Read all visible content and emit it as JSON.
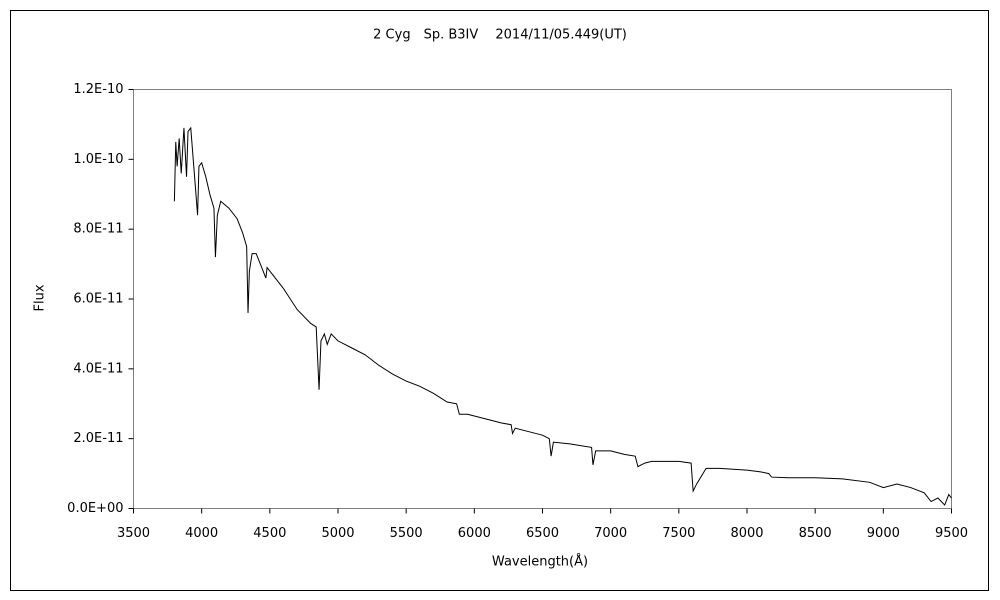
{
  "chart_data": {
    "type": "line",
    "title": "2 Cyg　Sp. B3IV　 2014/11/05.449(UT)",
    "x_label": "Wavelength(Å)",
    "y_label": "Flux",
    "x": [
      3800,
      3810,
      3820,
      3835,
      3850,
      3870,
      3889,
      3900,
      3920,
      3940,
      3970,
      3980,
      4000,
      4030,
      4060,
      4090,
      4101,
      4115,
      4140,
      4200,
      4260,
      4300,
      4330,
      4340,
      4350,
      4370,
      4400,
      4471,
      4480,
      4500,
      4600,
      4700,
      4800,
      4840,
      4861,
      4875,
      4900,
      4921,
      4950,
      5000,
      5100,
      5200,
      5300,
      5400,
      5500,
      5600,
      5700,
      5800,
      5870,
      5890,
      5950,
      6000,
      6100,
      6200,
      6270,
      6280,
      6300,
      6400,
      6500,
      6550,
      6563,
      6580,
      6700,
      6860,
      6870,
      6890,
      7000,
      7100,
      7180,
      7200,
      7250,
      7300,
      7400,
      7500,
      7590,
      7605,
      7630,
      7700,
      7800,
      8000,
      8100,
      8160,
      8180,
      8300,
      8500,
      8700,
      8900,
      9000,
      9100,
      9200,
      9300,
      9350,
      9400,
      9450,
      9480,
      9500
    ],
    "series": [
      {
        "name": "Flux",
        "color": "#000000",
        "values": [
          8.8e-11,
          1.05e-10,
          9.8e-11,
          1.06e-10,
          9.6e-11,
          1.09e-10,
          9.5e-11,
          1.08e-10,
          1.09e-10,
          9.9e-11,
          8.4e-11,
          9.8e-11,
          9.9e-11,
          9.5e-11,
          9e-11,
          8.6e-11,
          7.2e-11,
          8.4e-11,
          8.8e-11,
          8.6e-11,
          8.3e-11,
          7.9e-11,
          7.5e-11,
          5.6e-11,
          6.8e-11,
          7.3e-11,
          7.3e-11,
          6.6e-11,
          6.9e-11,
          6.8e-11,
          6.3e-11,
          5.7e-11,
          5.3e-11,
          5.2e-11,
          3.4e-11,
          4.8e-11,
          5e-11,
          4.7e-11,
          5e-11,
          4.8e-11,
          4.6e-11,
          4.4e-11,
          4.1e-11,
          3.85e-11,
          3.65e-11,
          3.5e-11,
          3.3e-11,
          3.05e-11,
          3e-11,
          2.7e-11,
          2.7e-11,
          2.65e-11,
          2.55e-11,
          2.45e-11,
          2.4e-11,
          2.15e-11,
          2.3e-11,
          2.2e-11,
          2.1e-11,
          2e-11,
          1.5e-11,
          1.9e-11,
          1.85e-11,
          1.75e-11,
          1.25e-11,
          1.65e-11,
          1.65e-11,
          1.55e-11,
          1.5e-11,
          1.2e-11,
          1.3e-11,
          1.35e-11,
          1.35e-11,
          1.35e-11,
          1.3e-11,
          5e-12,
          7e-12,
          1.15e-11,
          1.15e-11,
          1.1e-11,
          1.05e-11,
          1e-11,
          9e-12,
          8.8e-12,
          8.8e-12,
          8.5e-12,
          7.5e-12,
          6e-12,
          7e-12,
          6e-12,
          4.5e-12,
          2e-12,
          3e-12,
          1e-12,
          4e-12,
          3e-12
        ]
      }
    ],
    "xlim": [
      3500,
      9500
    ],
    "xticks": [
      3500,
      4000,
      4500,
      5000,
      5500,
      6000,
      6500,
      7000,
      7500,
      8000,
      8500,
      9000,
      9500
    ],
    "ylim": [
      0,
      1.2e-10
    ],
    "yticks": [
      {
        "value": 0,
        "label": "0.0E+00"
      },
      {
        "value": 2e-11,
        "label": "2.0E-11"
      },
      {
        "value": 4e-11,
        "label": "4.0E-11"
      },
      {
        "value": 6e-11,
        "label": "6.0E-11"
      },
      {
        "value": 8e-11,
        "label": "8.0E-11"
      },
      {
        "value": 1e-10,
        "label": "1.0E-10"
      },
      {
        "value": 1.2e-10,
        "label": "1.2E-10"
      }
    ],
    "grid": false
  }
}
